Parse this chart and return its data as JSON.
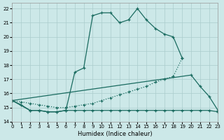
{
  "xlabel": "Humidex (Indice chaleur)",
  "bg_color": "#cce8e8",
  "grid_color": "#aacccc",
  "line_color": "#1a6b60",
  "xlim": [
    0,
    23
  ],
  "ylim": [
    14,
    22.4
  ],
  "yticks": [
    14,
    15,
    16,
    17,
    18,
    19,
    20,
    21,
    22
  ],
  "xticks": [
    0,
    1,
    2,
    3,
    4,
    5,
    6,
    7,
    8,
    9,
    10,
    11,
    12,
    13,
    14,
    15,
    16,
    17,
    18,
    19,
    20,
    21,
    22,
    23
  ],
  "s1_x": [
    0,
    1,
    2,
    3,
    4,
    5,
    6,
    7,
    8,
    9,
    10,
    11,
    12,
    13,
    14,
    15,
    16,
    17,
    18,
    19
  ],
  "s1_y": [
    15.5,
    15.2,
    14.8,
    14.8,
    14.7,
    14.7,
    14.8,
    17.5,
    17.8,
    21.5,
    21.7,
    21.7,
    21.0,
    21.2,
    22.0,
    21.2,
    20.6,
    20.2,
    20.0,
    18.5
  ],
  "s2_x": [
    0,
    20,
    21,
    22,
    23
  ],
  "s2_y": [
    15.5,
    17.3,
    16.5,
    15.8,
    14.8
  ],
  "s3_x": [
    0,
    2,
    3,
    4,
    5,
    6,
    7,
    8,
    9,
    10,
    11,
    12,
    13,
    14,
    15,
    16,
    17,
    18,
    19,
    20,
    21,
    22,
    23
  ],
  "s3_y": [
    15.5,
    14.8,
    14.8,
    14.7,
    14.7,
    14.8,
    14.8,
    14.8,
    14.8,
    14.8,
    14.8,
    14.8,
    14.8,
    14.8,
    14.8,
    14.8,
    14.8,
    14.8,
    14.8,
    14.8,
    14.8,
    14.8,
    14.7
  ],
  "s4_x": [
    0,
    1,
    2,
    3,
    4,
    5,
    6,
    7,
    8,
    9,
    10,
    11,
    12,
    13,
    14,
    15,
    16,
    17,
    18,
    19
  ],
  "s4_y": [
    15.5,
    15.4,
    15.3,
    15.2,
    15.1,
    15.0,
    15.0,
    15.1,
    15.2,
    15.3,
    15.5,
    15.7,
    15.9,
    16.1,
    16.3,
    16.5,
    16.8,
    17.0,
    17.2,
    18.5
  ]
}
